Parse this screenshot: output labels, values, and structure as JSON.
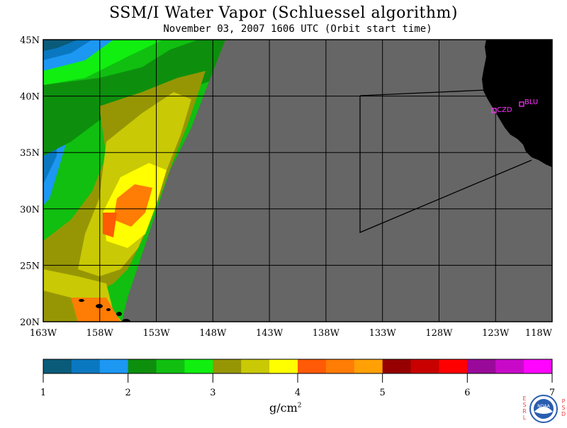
{
  "title": "SSM/I Water Vapor (Schluessel algorithm)",
  "subtitle": "November 03, 2007  1606 UTC  (Orbit start time)",
  "map": {
    "lat_labels": [
      "45N",
      "40N",
      "35N",
      "30N",
      "25N",
      "20N"
    ],
    "lon_labels": [
      "163W",
      "158W",
      "153W",
      "148W",
      "143W",
      "138W",
      "133W",
      "128W",
      "123W",
      "118W"
    ],
    "stations": [
      {
        "id": "CZD"
      },
      {
        "id": "BLU"
      }
    ],
    "colors": {
      "no_data": "#666666",
      "land": "#000000",
      "grid": "#000000",
      "station": "#ff33ff"
    }
  },
  "colorbar": {
    "tick_labels": [
      "1",
      "2",
      "3",
      "4",
      "5",
      "6",
      "7"
    ],
    "colors": [
      "#0a5b7a",
      "#0a78c0",
      "#1c97f2",
      "#0d8f0d",
      "#10bf10",
      "#10ef10",
      "#969605",
      "#c9c905",
      "#ffff00",
      "#ff5a05",
      "#ff7c05",
      "#ffa005",
      "#960000",
      "#c80000",
      "#ff0000",
      "#9a0a9a",
      "#c80ac8",
      "#ff05ff"
    ],
    "units": "g/cm",
    "units_sup": "2"
  },
  "logo": {
    "text": "NOAA",
    "left_side": "ESRL",
    "right_side": "PSD"
  }
}
